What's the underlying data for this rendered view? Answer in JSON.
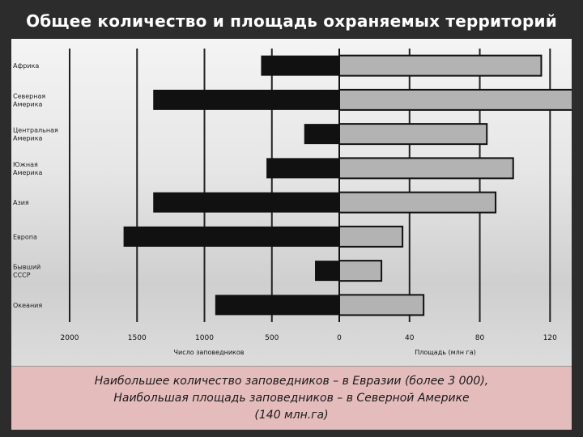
{
  "title": "Общее количество и площадь охраняемых территорий",
  "chart_data": {
    "type": "bar",
    "categories": [
      [
        "Африка"
      ],
      [
        "Северная",
        "Америка"
      ],
      [
        "Центральная",
        "Америка"
      ],
      [
        "Южная",
        "Америка"
      ],
      [
        "Азия"
      ],
      [
        "Европа"
      ],
      [
        "Бывший",
        "СССР"
      ],
      [
        "Океания"
      ]
    ],
    "series": [
      {
        "name": "Число заповедников",
        "values": [
          580,
          1380,
          260,
          540,
          1380,
          1600,
          180,
          920
        ]
      },
      {
        "name": "Площадь (млн га)",
        "values": [
          115,
          140,
          84,
          99,
          89,
          36,
          24,
          48
        ]
      }
    ],
    "left_axis": {
      "label": "Число заповедников",
      "ticks": [
        2000,
        1500,
        1000,
        500,
        0
      ],
      "range": [
        0,
        2000
      ]
    },
    "right_axis": {
      "label": "Площадь (млн га)",
      "ticks": [
        0,
        40,
        80,
        120
      ],
      "range": [
        0,
        130
      ]
    },
    "colors": {
      "count": "#111111",
      "area": "#b3b3b3"
    }
  },
  "caption": {
    "line1": "Наибольшее количество заповедников – в Евразии (более 3 000),",
    "line2": "Наибольшая площадь заповедников – в Северной Америке",
    "line3": "(140 млн.га)"
  }
}
